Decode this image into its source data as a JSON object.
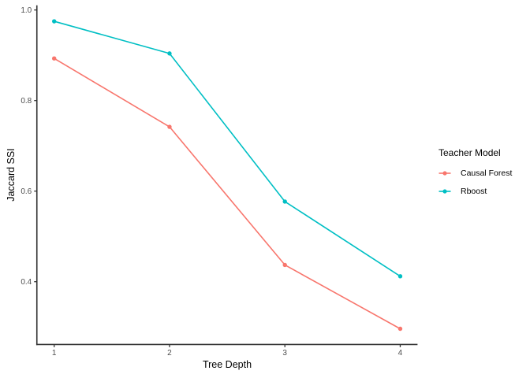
{
  "chart_data": {
    "type": "line",
    "title": "",
    "xlabel": "Tree Depth",
    "ylabel": "Jaccard SSI",
    "x": [
      1,
      2,
      3,
      4
    ],
    "series": [
      {
        "name": "Causal Forest",
        "color": "#F8766D",
        "values": [
          0.893,
          0.742,
          0.437,
          0.296
        ]
      },
      {
        "name": "Rboost",
        "color": "#00BFC4",
        "values": [
          0.975,
          0.904,
          0.577,
          0.412
        ]
      }
    ],
    "x_ticks": [
      1,
      2,
      3,
      4
    ],
    "x_tick_labels": [
      "1",
      "2",
      "3",
      "4"
    ],
    "y_ticks": [
      1.0,
      0.8,
      0.6,
      0.4
    ],
    "y_tick_labels": [
      "1.0",
      "0.8",
      "0.6",
      "0.4"
    ],
    "xlim": [
      0.85,
      4.15
    ],
    "ylim": [
      0.2614,
      1.0104
    ],
    "grid": false,
    "marker": "circle",
    "point_radius": 2.7,
    "line_width": 1.6,
    "axis_color": "#333333",
    "tick_label_color": "#4d4d4d",
    "background_color": "#ffffff",
    "legend": {
      "title": "Teacher Model",
      "position": "right",
      "entries": [
        "Causal Forest",
        "Rboost"
      ]
    }
  }
}
